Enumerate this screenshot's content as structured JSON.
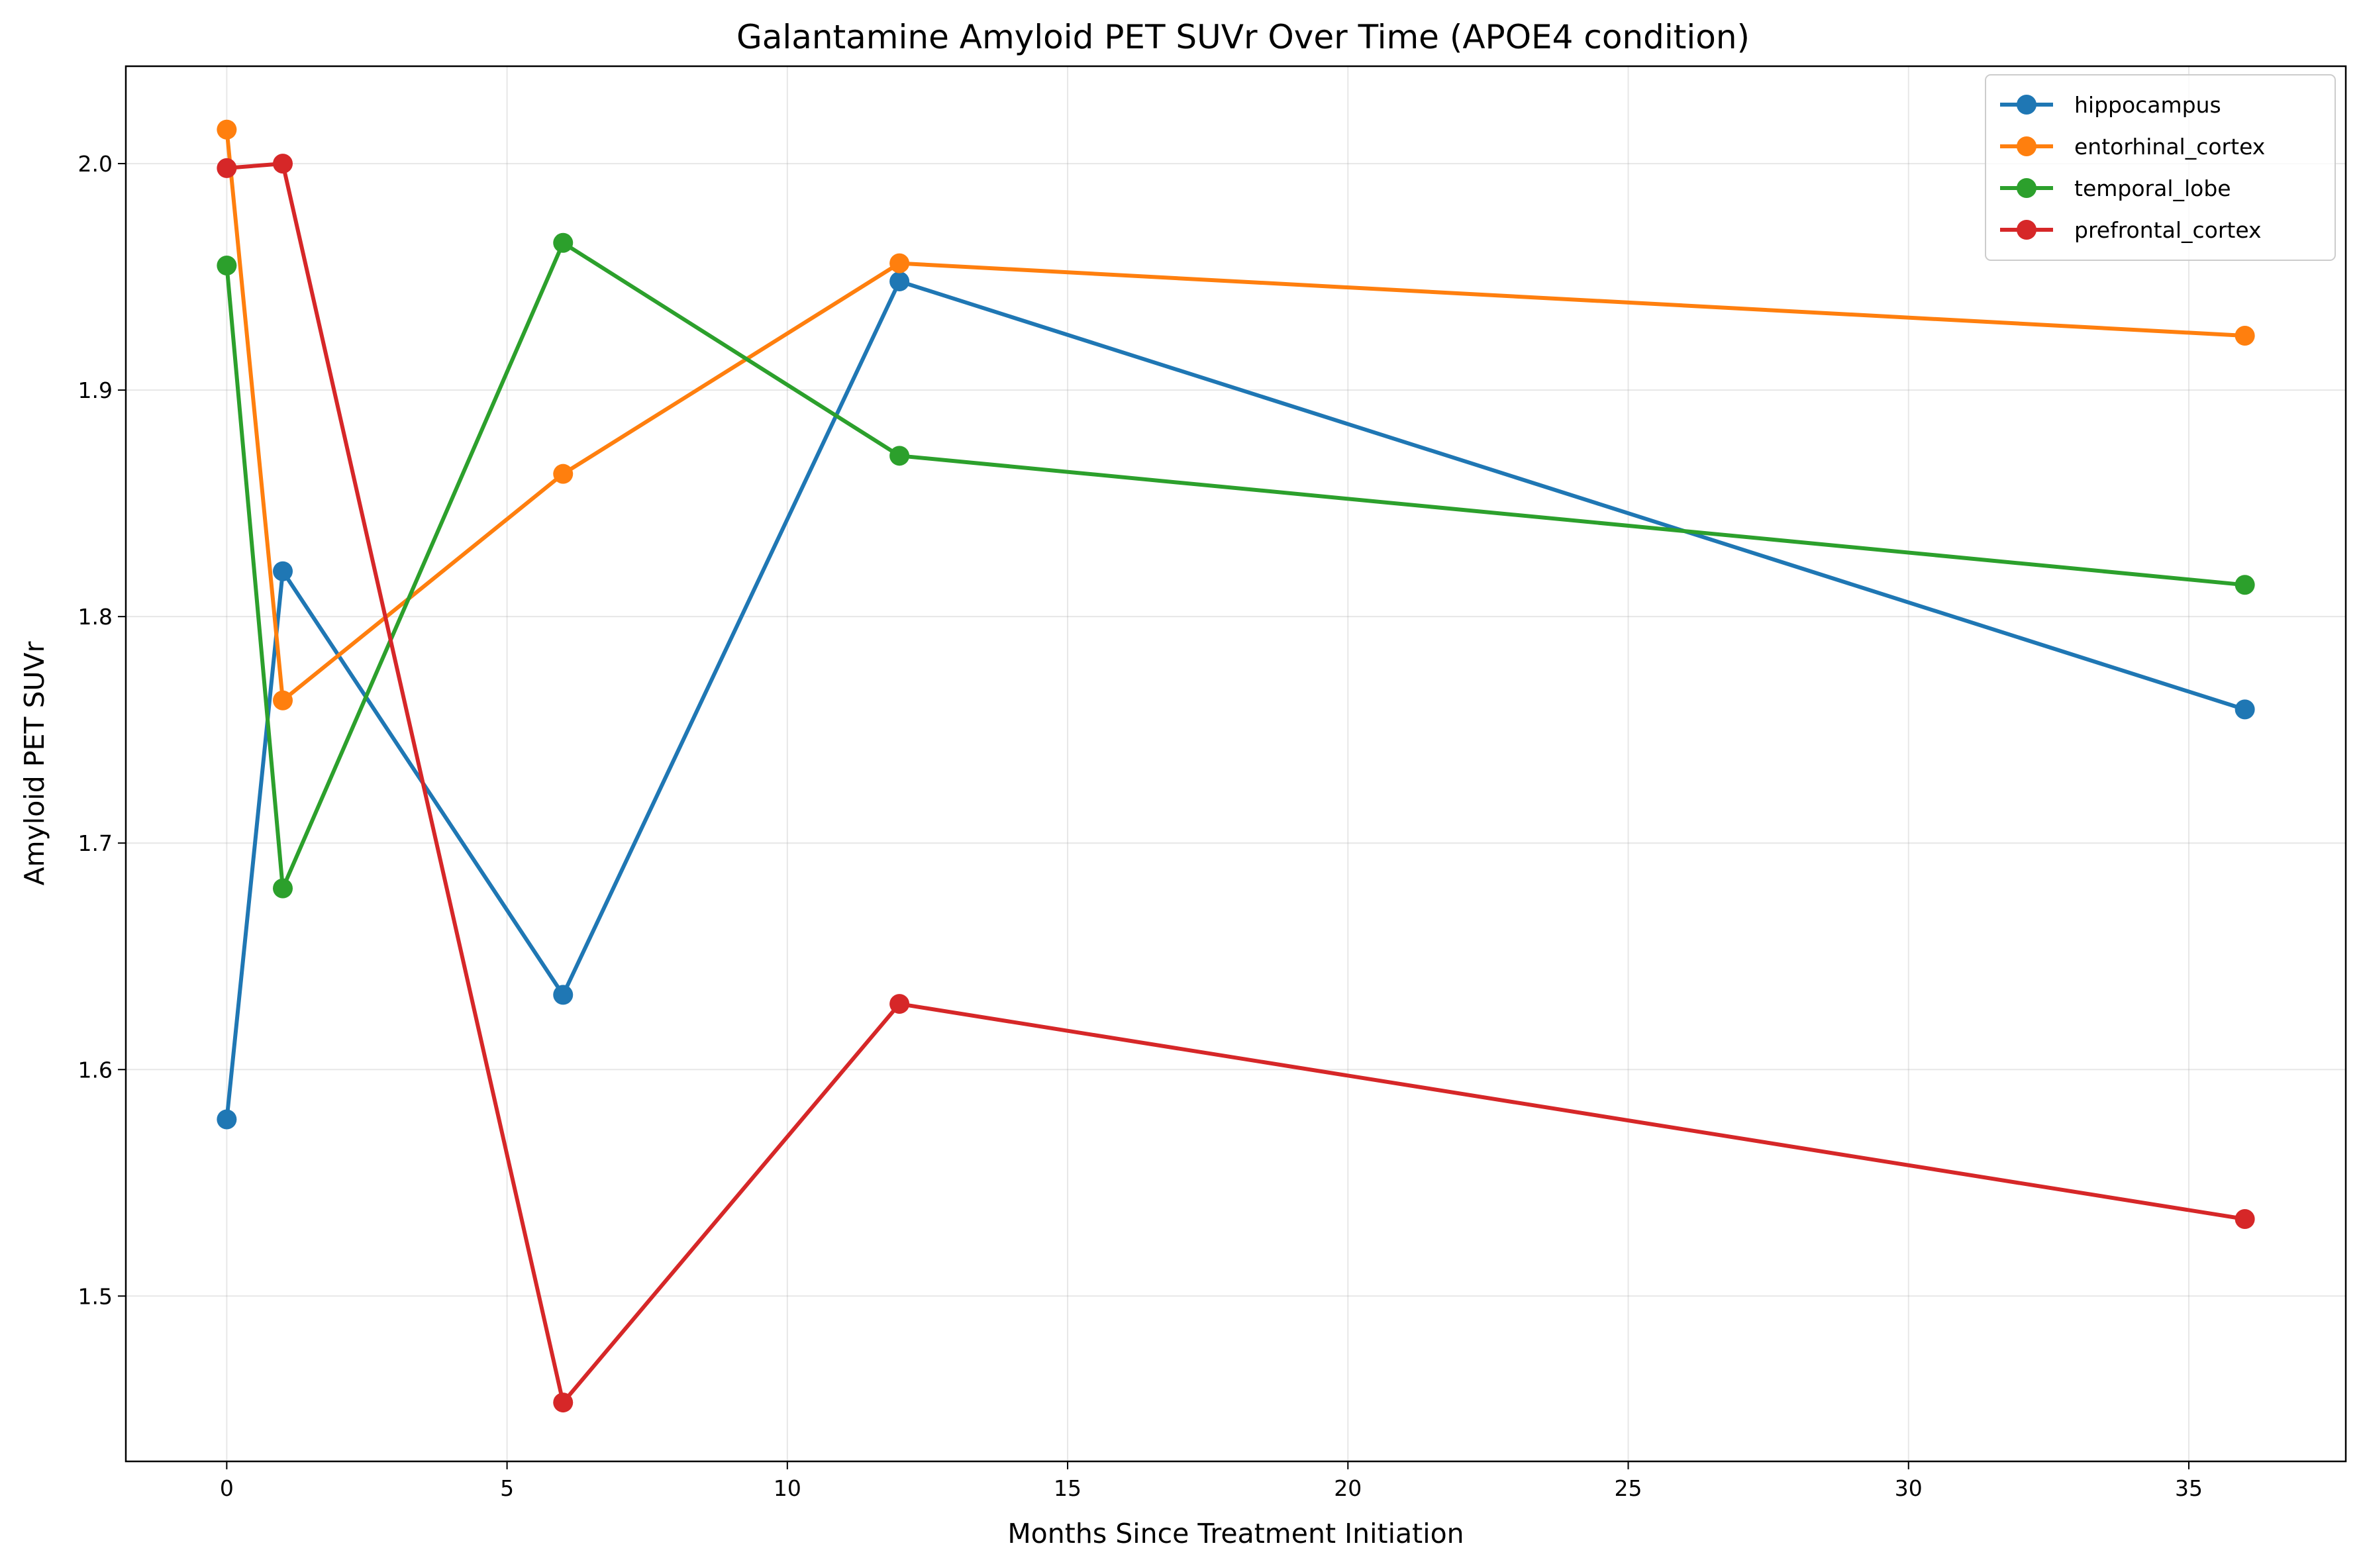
{
  "chart_data": {
    "type": "line",
    "title": "Galantamine Amyloid PET SUVr Over Time (APOE4 condition)",
    "xlabel": "Months Since Treatment Initiation",
    "ylabel": "Amyloid PET SUVr",
    "xlim": [
      -1.8,
      37.8
    ],
    "ylim": [
      1.427,
      2.043
    ],
    "xticks": [
      0,
      5,
      10,
      15,
      20,
      25,
      30,
      35
    ],
    "yticks": [
      1.5,
      1.6,
      1.7,
      1.8,
      1.9,
      2.0
    ],
    "xtick_labels": [
      "0",
      "5",
      "10",
      "15",
      "20",
      "25",
      "30",
      "35"
    ],
    "ytick_labels": [
      "1.5",
      "1.6",
      "1.7",
      "1.8",
      "1.9",
      "2.0"
    ],
    "grid": true,
    "legend_position": "top-right",
    "x": [
      0,
      1,
      6,
      12,
      36
    ],
    "series": [
      {
        "name": "hippocampus",
        "color": "#1f77b4",
        "values": [
          1.578,
          1.82,
          1.633,
          1.948,
          1.759
        ]
      },
      {
        "name": "entorhinal_cortex",
        "color": "#ff7f0e",
        "values": [
          2.015,
          1.763,
          1.863,
          1.956,
          1.924
        ]
      },
      {
        "name": "temporal_lobe",
        "color": "#2ca02c",
        "values": [
          1.955,
          1.68,
          1.965,
          1.871,
          1.814
        ]
      },
      {
        "name": "prefrontal_cortex",
        "color": "#d62728",
        "values": [
          1.998,
          2.0,
          1.453,
          1.629,
          1.534
        ]
      }
    ]
  }
}
